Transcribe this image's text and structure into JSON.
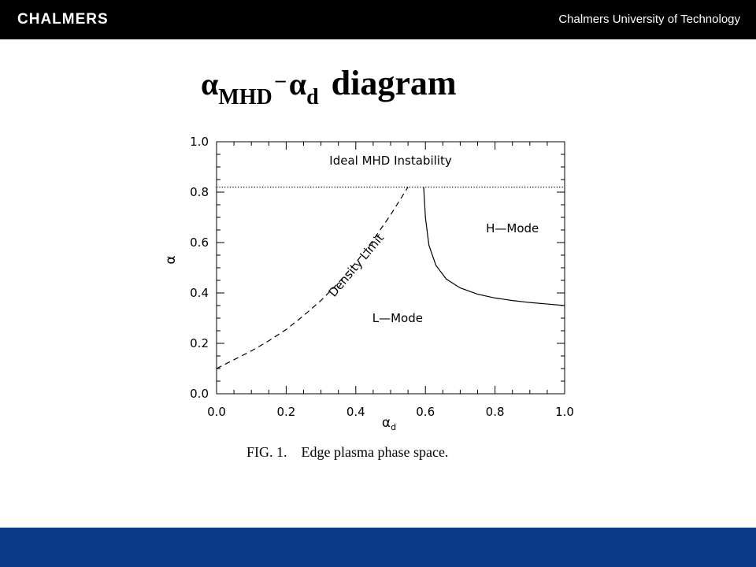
{
  "header": {
    "logo_text": "CHALMERS",
    "university": "Chalmers University of Technology",
    "background": "#000000"
  },
  "slide_title": {
    "alpha1": "α",
    "sub1": "MHD",
    "dash": "–",
    "alpha2": "α",
    "sub2": "d",
    "word": "diagram"
  },
  "caption": "FIG. 1.    Edge plasma phase space.",
  "footer": {
    "background": "#0b3a86"
  },
  "chart_data": {
    "type": "line",
    "xlabel": "αd",
    "xlabel_main": "α",
    "xlabel_sub": "d",
    "ylabel": "α",
    "xlim": [
      0.0,
      1.0
    ],
    "ylim": [
      0.0,
      1.0
    ],
    "x_ticks": [
      "0.0",
      "0.2",
      "0.4",
      "0.6",
      "0.8",
      "1.0"
    ],
    "y_ticks": [
      "0.0",
      "0.2",
      "0.4",
      "0.6",
      "0.8",
      "1.0"
    ],
    "grid": false,
    "series": [
      {
        "name": "Ideal MHD Instability",
        "style": "dotted",
        "x": [
          0.0,
          1.0
        ],
        "y": [
          0.82,
          0.82
        ]
      },
      {
        "name": "Density Limit",
        "style": "dashed",
        "x": [
          0.0,
          0.05,
          0.1,
          0.15,
          0.2,
          0.25,
          0.3,
          0.35,
          0.4,
          0.45,
          0.5,
          0.55
        ],
        "y": [
          0.1,
          0.135,
          0.17,
          0.21,
          0.255,
          0.31,
          0.37,
          0.44,
          0.52,
          0.61,
          0.71,
          0.82
        ]
      },
      {
        "name": "H-Mode boundary",
        "style": "solid",
        "x": [
          0.595,
          0.6,
          0.61,
          0.63,
          0.66,
          0.7,
          0.75,
          0.8,
          0.85,
          0.9,
          0.95,
          1.0
        ],
        "y": [
          0.82,
          0.7,
          0.59,
          0.51,
          0.455,
          0.42,
          0.395,
          0.38,
          0.37,
          0.362,
          0.356,
          0.35
        ]
      }
    ],
    "annotations": [
      {
        "text": "Ideal MHD Instability",
        "x": 0.5,
        "y": 0.91
      },
      {
        "text": "H—Mode",
        "x": 0.85,
        "y": 0.64
      },
      {
        "text": "L—Mode",
        "x": 0.52,
        "y": 0.285
      },
      {
        "text": "Density Limit",
        "x": 0.41,
        "y": 0.5,
        "rotate": -50
      }
    ]
  }
}
